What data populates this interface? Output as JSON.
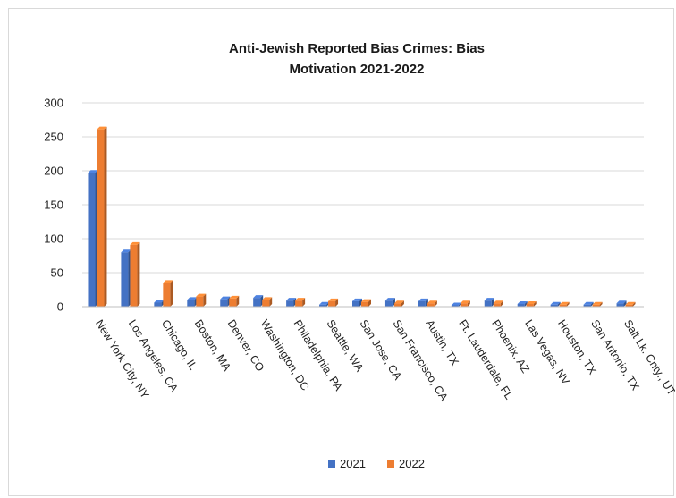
{
  "chart_data": {
    "type": "bar",
    "title_lines": [
      "Anti-Jewish Reported Bias Crimes: Bias",
      "Motivation 2021-2022"
    ],
    "categories": [
      "New York City, NY",
      "Los Angeles, CA",
      "Chicago, IL",
      "Boston, MA",
      "Denver, CO",
      "Washington, DC",
      "Philadelphia, PA",
      "Seattle, WA",
      "San Jose, CA",
      "San Francisco, CA",
      "Austin, TX",
      "Ft. Lauderdale, FL",
      "Phoenix, AZ",
      "Las Vegas, NV",
      "Houston, TX",
      "San Antonio, TX",
      "Salt Lk. Cnty., UT"
    ],
    "series": [
      {
        "name": "2021",
        "color": "#4472c4",
        "values": [
          197,
          80,
          6,
          10,
          11,
          13,
          9,
          3,
          8,
          9,
          8,
          2,
          9,
          4,
          3,
          3,
          5
        ]
      },
      {
        "name": "2022",
        "color": "#ed7d31",
        "values": [
          261,
          91,
          35,
          15,
          12,
          10,
          9,
          8,
          7,
          5,
          5,
          5,
          5,
          4,
          3,
          3,
          3
        ]
      }
    ],
    "ylim": [
      0,
      300
    ],
    "yticks": [
      0,
      50,
      100,
      150,
      200,
      250,
      300
    ],
    "ytick_labels": [
      "0",
      "50",
      "100",
      "150",
      "200",
      "250",
      "300"
    ],
    "grid": true,
    "legend_position": "bottom"
  }
}
